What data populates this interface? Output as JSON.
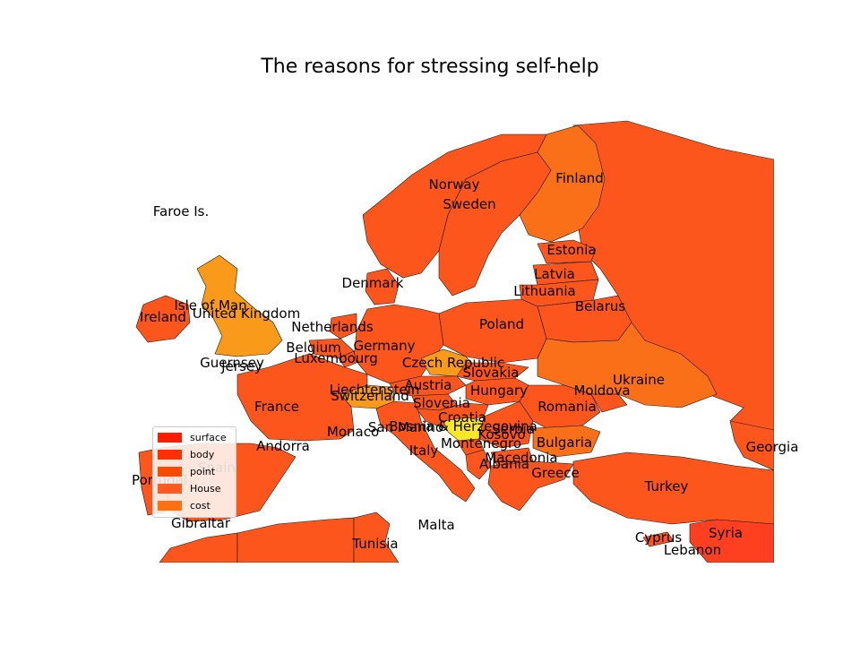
{
  "title": "The reasons for stressing self-help",
  "legend": [
    {
      "label": "surface",
      "color": "#ff1a00"
    },
    {
      "label": "body",
      "color": "#ff2f00"
    },
    {
      "label": "point",
      "color": "#ff4800"
    },
    {
      "label": "House",
      "color": "#ff5a20"
    },
    {
      "label": "cost",
      "color": "#ff7011"
    }
  ],
  "colors": {
    "base": "#fd561c",
    "orange": "#fa7018",
    "amber": "#fa9a1a",
    "yellow": "#fde828",
    "red": "#ff4020",
    "border": "#1a1a1a"
  },
  "countries": [
    "Faroe Is.",
    "Norway",
    "Sweden",
    "Finland",
    "Estonia",
    "Latvia",
    "Lithuania",
    "Denmark",
    "Belarus",
    "Isle of Man",
    "Ireland",
    "United Kingdom",
    "Netherlands",
    "Poland",
    "Belgium",
    "Germany",
    "Luxembourg",
    "Guernsey",
    "Jersey",
    "Czech Republic",
    "Slovakia",
    "Ukraine",
    "Liechtenstein",
    "Austria",
    "Hungary",
    "Moldova",
    "Switzerland",
    "France",
    "Slovenia",
    "Romania",
    "Croatia",
    "Bosnia & Herzegovina",
    "San Marino",
    "Serbia",
    "Monaco",
    "Montenegro",
    "Bulgaria",
    "Andorra",
    "Italy",
    "Kosovo",
    "Macedonia",
    "Albania",
    "Greece",
    "Portugal",
    "Spain",
    "Turkey",
    "Georgia",
    "Gibraltar",
    "Malta",
    "Cyprus",
    "Syria",
    "Tunisia",
    "Lebanon"
  ]
}
